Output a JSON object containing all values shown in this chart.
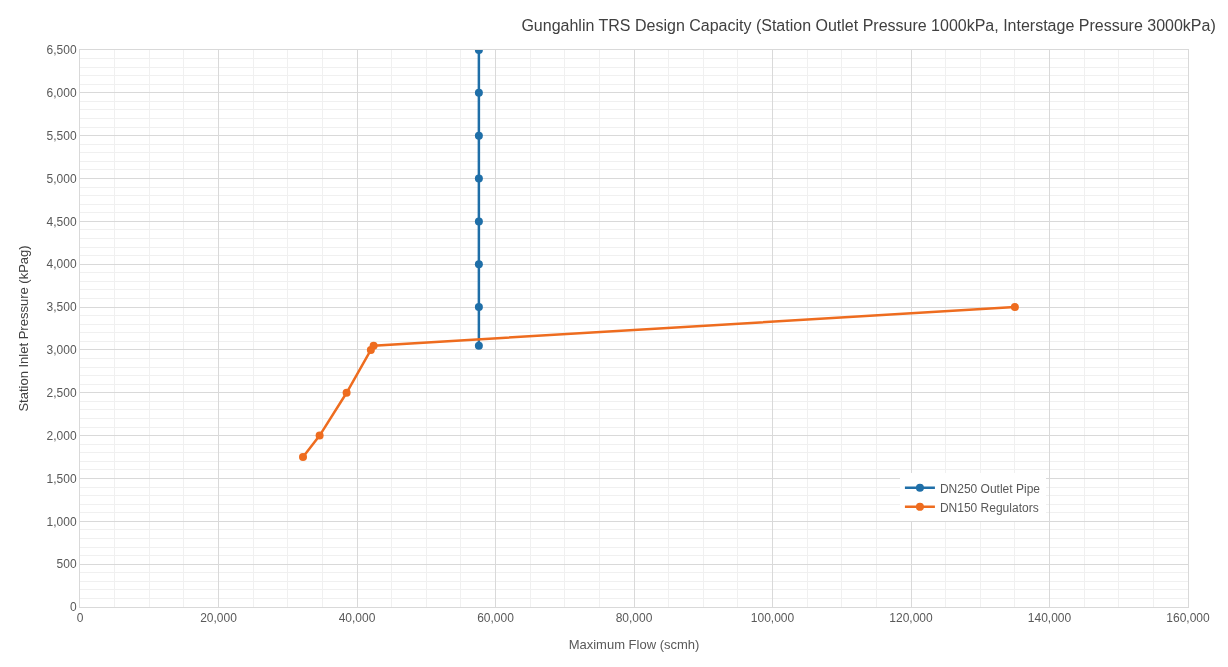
{
  "chart_data": {
    "type": "line",
    "title": "Gungahlin TRS Design Capacity (Station Outlet Pressure 1000kPa, Interstage Pressure 3000kPa)",
    "xlabel": "Maximum Flow (scmh)",
    "ylabel": "Station Inlet Pressure (kPag)",
    "series": [
      {
        "name": "DN250 Outlet Pipe",
        "color": "#1f6fa8",
        "x": [
          57600,
          57600,
          57600,
          57600,
          57600,
          57600,
          57600,
          57600
        ],
        "values": [
          6500,
          6000,
          5500,
          5000,
          4500,
          4000,
          3500,
          3050
        ]
      },
      {
        "name": "DN150 Regulators",
        "color": "#ee6c1f",
        "x": [
          32200,
          34600,
          38500,
          42000,
          42400,
          135000
        ],
        "values": [
          1750,
          2000,
          2500,
          3000,
          3050,
          3500
        ]
      }
    ],
    "xlim": [
      0,
      160000
    ],
    "xticks": [
      {
        "value": 0,
        "label": "0"
      },
      {
        "value": 20000,
        "label": "20,000"
      },
      {
        "value": 40000,
        "label": "40,000"
      },
      {
        "value": 60000,
        "label": "60,000"
      },
      {
        "value": 80000,
        "label": "80,000"
      },
      {
        "value": 100000,
        "label": "100,000"
      },
      {
        "value": 120000,
        "label": "120,000"
      },
      {
        "value": 140000,
        "label": "140,000"
      },
      {
        "value": 160000,
        "label": "160,000"
      }
    ],
    "ylim": [
      0,
      6500
    ],
    "yticks": [
      {
        "value": 0,
        "label": "0"
      },
      {
        "value": 500,
        "label": "500"
      },
      {
        "value": 1000,
        "label": "1,000"
      },
      {
        "value": 1500,
        "label": "1,500"
      },
      {
        "value": 2000,
        "label": "2,000"
      },
      {
        "value": 2500,
        "label": "2,500"
      },
      {
        "value": 3000,
        "label": "3,000"
      },
      {
        "value": 3500,
        "label": "3,500"
      },
      {
        "value": 4000,
        "label": "4,000"
      },
      {
        "value": 4500,
        "label": "4,500"
      },
      {
        "value": 5000,
        "label": "5,000"
      },
      {
        "value": 5500,
        "label": "5,500"
      },
      {
        "value": 6000,
        "label": "6,000"
      },
      {
        "value": 6500,
        "label": "6,500"
      }
    ],
    "grid": true,
    "legend": "bottom right",
    "marker": "circle",
    "line_style": "solid"
  }
}
